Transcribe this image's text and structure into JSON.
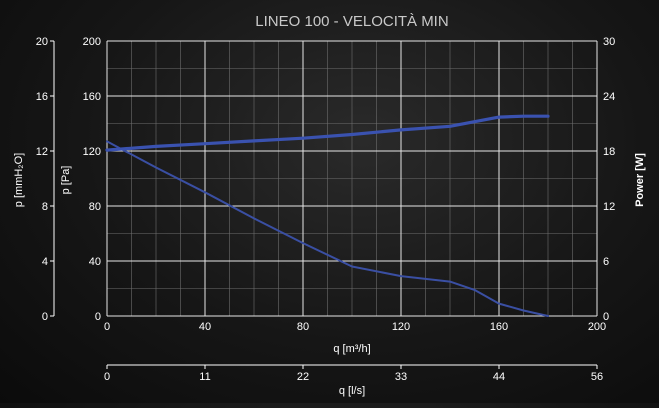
{
  "chart_data": {
    "type": "line",
    "title": "LINEO 100 - VELOCITÀ MIN",
    "xlabel": "q [m³/h]",
    "xlim": [
      0,
      200
    ],
    "xticks": [
      0,
      40,
      80,
      120,
      160,
      200
    ],
    "secondary_x": {
      "label": "q [l/s]",
      "ticks": [
        "0",
        "11",
        "22",
        "33",
        "44",
        "56"
      ]
    },
    "ylabel": "p [Pa]",
    "ylim": [
      0,
      200
    ],
    "yticks": [
      0,
      40,
      80,
      120,
      160,
      200
    ],
    "ylabel_left_outer": "p [mmH₂O]",
    "yticks_left_outer": [
      "0",
      "4",
      "8",
      "12",
      "16",
      "20"
    ],
    "ylabel_right": "Power [W]",
    "ylim_right": [
      0,
      30
    ],
    "yticks_right": [
      0,
      6,
      12,
      18,
      24,
      30
    ],
    "grid": true,
    "series": [
      {
        "axis": "left",
        "color": "#3a4fa3",
        "x": [
          0,
          20,
          40,
          60,
          80,
          100,
          120,
          140,
          150,
          160,
          170,
          180
        ],
        "y": [
          127,
          108,
          90,
          71,
          53,
          36,
          29,
          25,
          19,
          9,
          4,
          0
        ]
      },
      {
        "axis": "right",
        "color": "#3a52b0",
        "x": [
          0,
          20,
          40,
          60,
          80,
          100,
          120,
          140,
          150,
          160,
          170,
          180
        ],
        "y": [
          18.1,
          18.5,
          18.8,
          19.1,
          19.4,
          19.8,
          20.3,
          20.7,
          21.2,
          21.7,
          21.8,
          21.8
        ]
      }
    ]
  }
}
